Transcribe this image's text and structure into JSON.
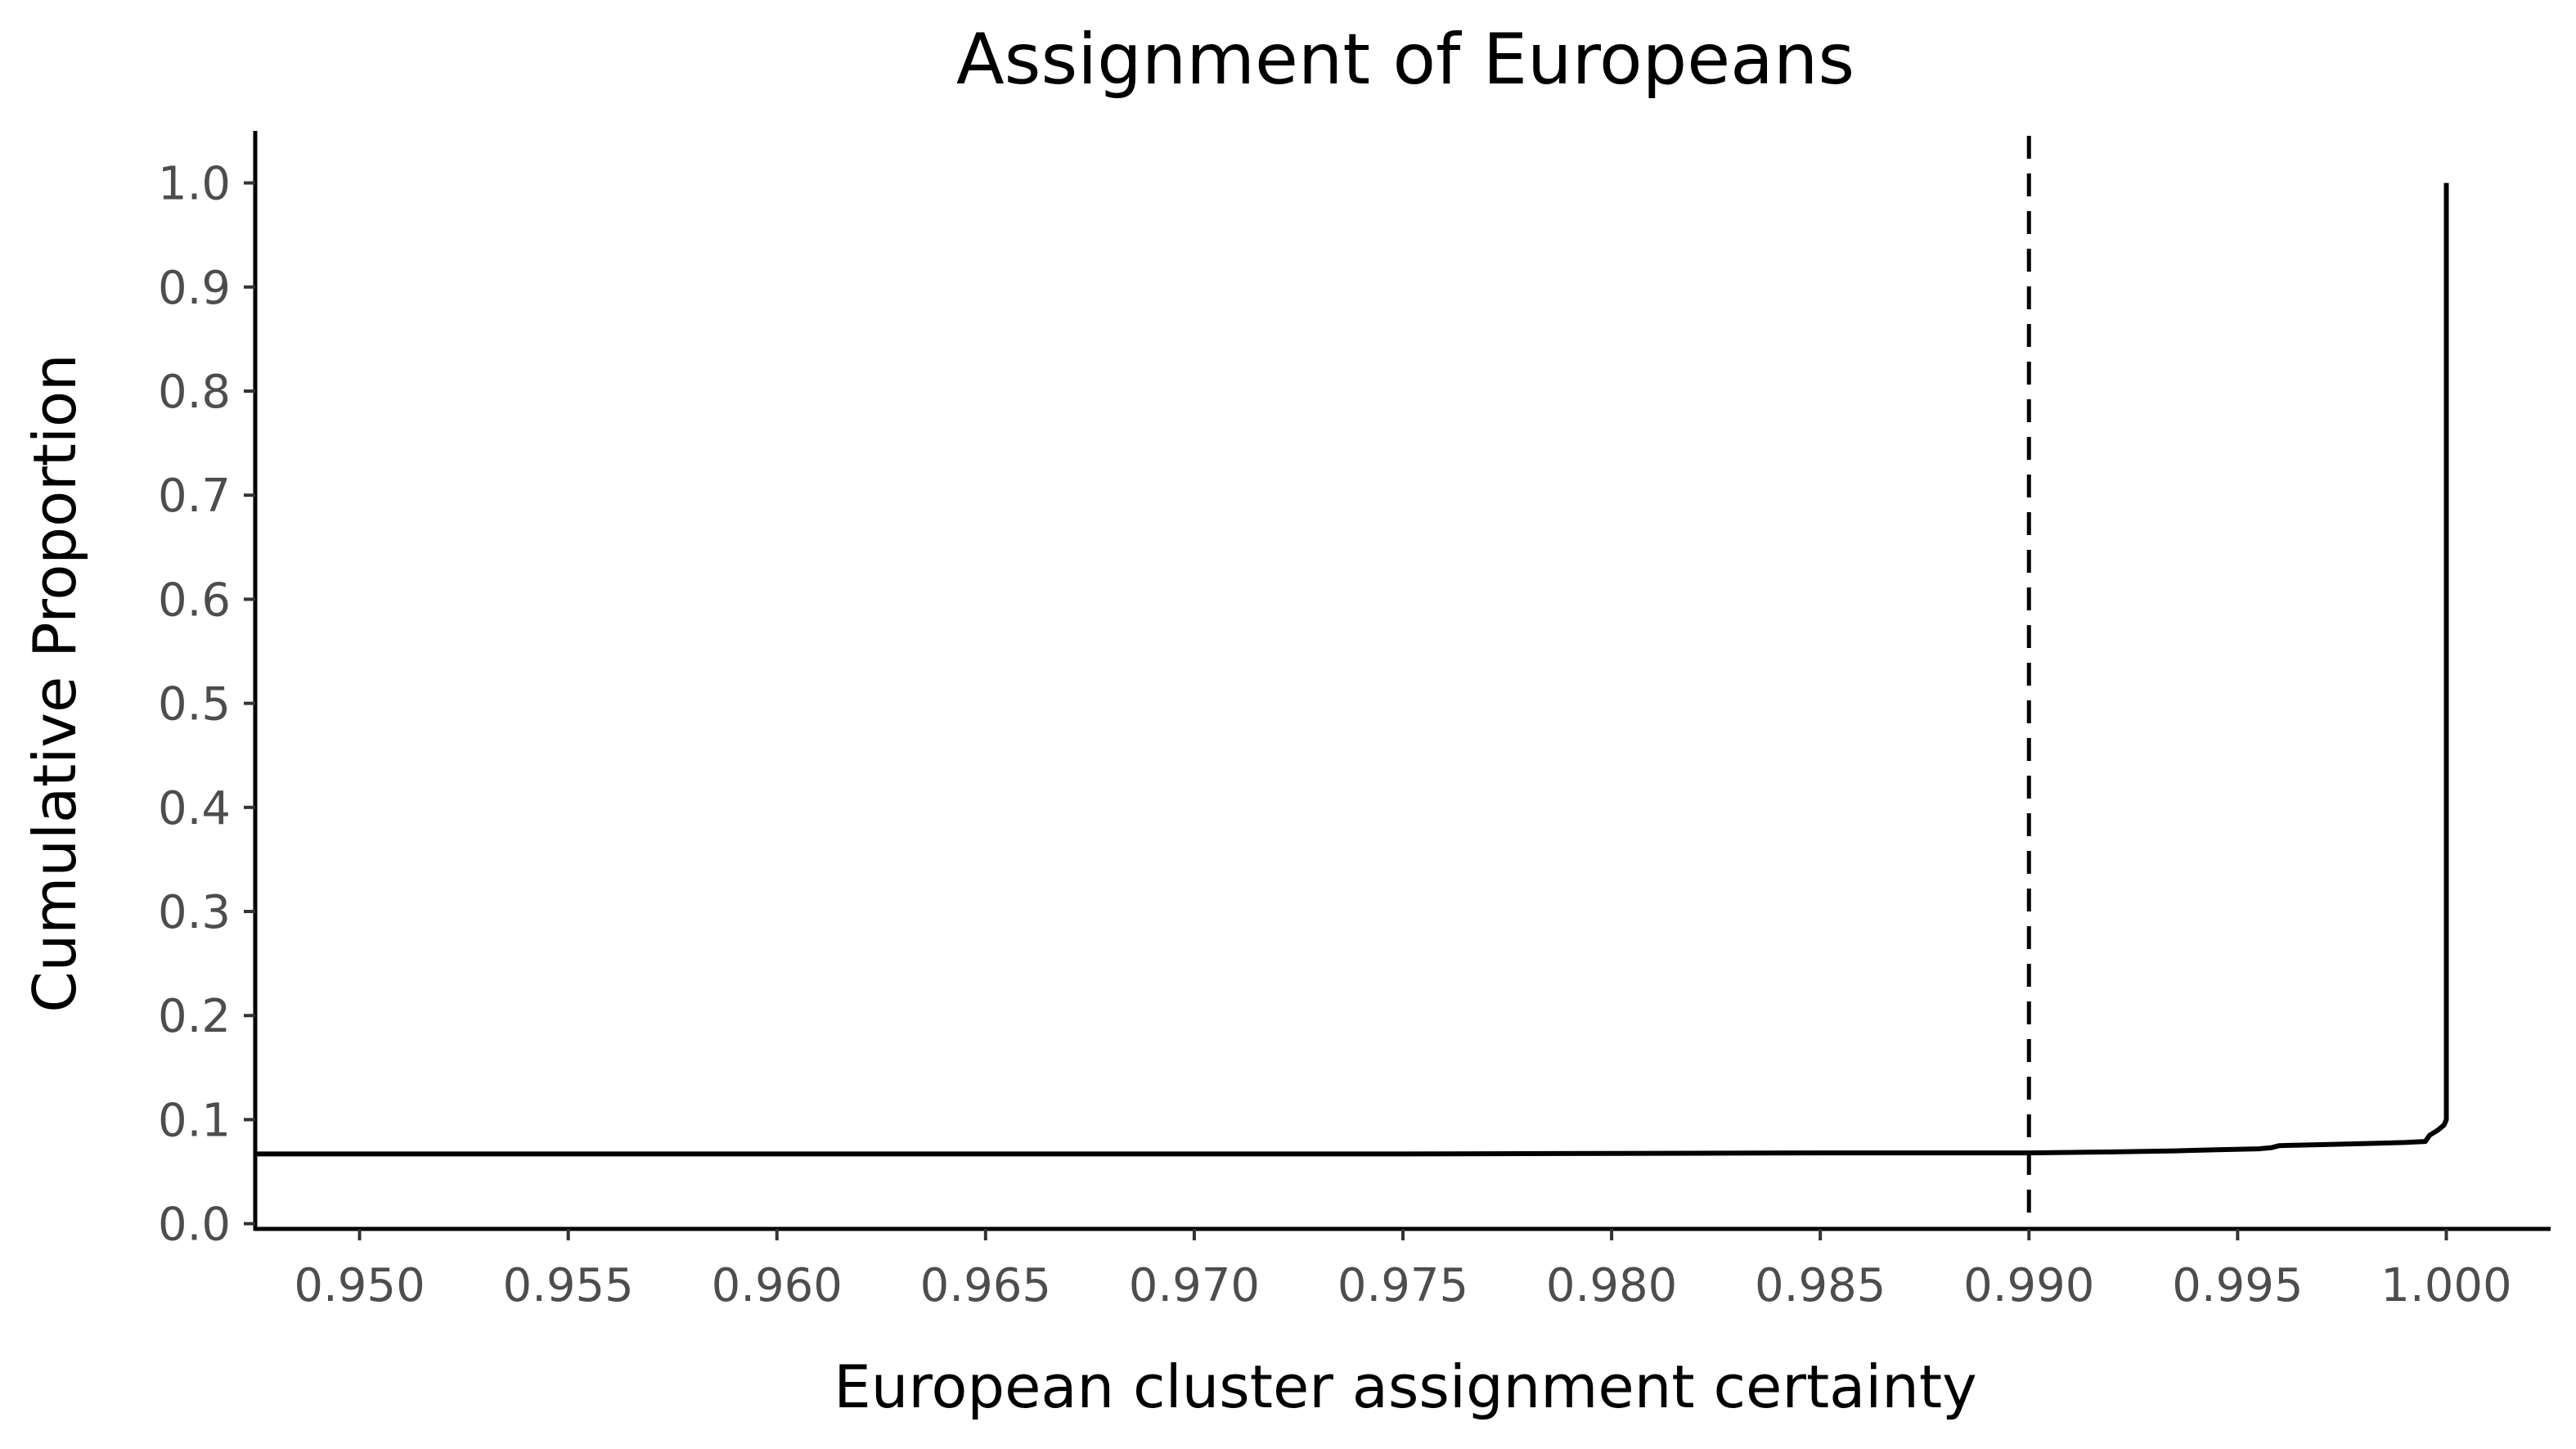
{
  "chart_data": {
    "type": "line",
    "title": "Assignment of Europeans",
    "xlabel": "European cluster assignment certainty",
    "ylabel": "Cumulative Proportion",
    "xlim": [
      0.9475,
      1.0025
    ],
    "ylim": [
      -0.005,
      1.05
    ],
    "xticks": [
      0.95,
      0.955,
      0.96,
      0.965,
      0.97,
      0.975,
      0.98,
      0.985,
      0.99,
      0.995,
      1.0
    ],
    "xtick_labels": [
      "0.950",
      "0.955",
      "0.960",
      "0.965",
      "0.970",
      "0.975",
      "0.980",
      "0.985",
      "0.990",
      "0.995",
      "1.000"
    ],
    "yticks": [
      0.0,
      0.1,
      0.2,
      0.3,
      0.4,
      0.5,
      0.6,
      0.7,
      0.8,
      0.9,
      1.0
    ],
    "ytick_labels": [
      "0.0",
      "0.1",
      "0.2",
      "0.3",
      "0.4",
      "0.5",
      "0.6",
      "0.7",
      "0.8",
      "0.9",
      "1.0"
    ],
    "grid": false,
    "legend": "none",
    "reference_line": {
      "x": 0.99,
      "style": "dashed",
      "color": "#000000"
    },
    "series": [
      {
        "color": "#000000",
        "x": [
          0.9475,
          0.955,
          0.965,
          0.975,
          0.985,
          0.99,
          0.992,
          0.9935,
          0.9945,
          0.9955,
          0.9958,
          0.996,
          0.997,
          0.998,
          0.999,
          0.9995,
          0.9996,
          0.9998,
          0.99995,
          1.0,
          1.0
        ],
        "y": [
          0.067,
          0.067,
          0.067,
          0.067,
          0.068,
          0.068,
          0.069,
          0.07,
          0.071,
          0.072,
          0.073,
          0.075,
          0.076,
          0.077,
          0.078,
          0.079,
          0.085,
          0.09,
          0.095,
          0.1,
          1.0
        ]
      }
    ]
  }
}
